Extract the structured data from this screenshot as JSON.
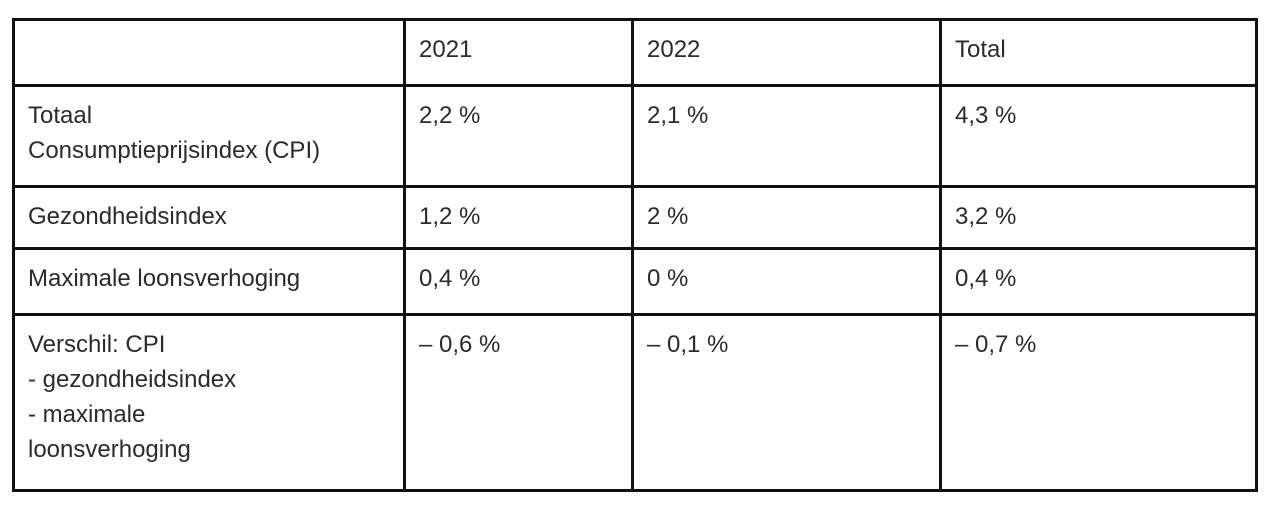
{
  "colors": {
    "text": "#2b2b2b",
    "border": "#111111",
    "background": "#ffffff"
  },
  "table": {
    "columns": [
      "",
      "2021",
      "2022",
      "Total"
    ],
    "rows": [
      {
        "label": "Totaal\nConsumptieprijsindex (CPI)",
        "values": [
          "2,2 %",
          "2,1 %",
          "4,3 %"
        ]
      },
      {
        "label": "Gezondheidsindex",
        "values": [
          "1,2 %",
          "2 %",
          "3,2 %"
        ]
      },
      {
        "label": "Maximale loonsverhoging",
        "values": [
          "0,4 %",
          "0 %",
          "0,4 %"
        ]
      },
      {
        "label": "Verschil: CPI\n- gezondheidsindex\n- maximale\nloonsverhoging",
        "values": [
          "– 0,6 %",
          "– 0,1 %",
          "– 0,7 %"
        ]
      }
    ]
  }
}
